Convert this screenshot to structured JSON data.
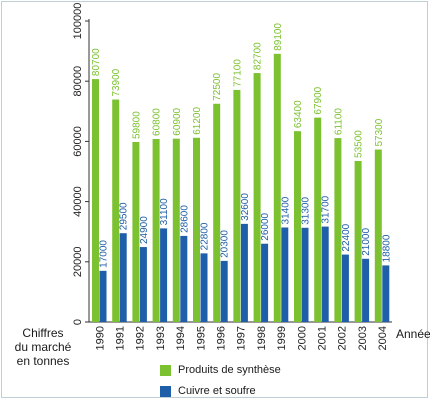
{
  "chart_data": {
    "type": "bar",
    "categories": [
      "1990",
      "1991",
      "1992",
      "1993",
      "1994",
      "1995",
      "1996",
      "1997",
      "1998",
      "1999",
      "2000",
      "2001",
      "2002",
      "2003",
      "2004"
    ],
    "series": [
      {
        "name": "Produits de synthèse",
        "color": "#7cc230",
        "values": [
          80700,
          73900,
          59800,
          60800,
          60900,
          61200,
          72500,
          77100,
          82700,
          89100,
          63400,
          67900,
          61100,
          53500,
          57300
        ]
      },
      {
        "name": "Cuivre et soufre",
        "color": "#1f5ea8",
        "values": [
          17000,
          29500,
          24900,
          31100,
          28600,
          22800,
          20300,
          32600,
          26000,
          31400,
          31300,
          31700,
          22400,
          21000,
          18800
        ]
      }
    ],
    "yticks": [
      "0",
      "20000",
      "40000",
      "60000",
      "80000",
      "100000"
    ],
    "ylim": [
      0,
      100000
    ],
    "ylabel_lines": [
      "Chiffres",
      "du marché",
      "en tonnes"
    ],
    "xlabel": "Année",
    "legend_position": "bottom"
  }
}
